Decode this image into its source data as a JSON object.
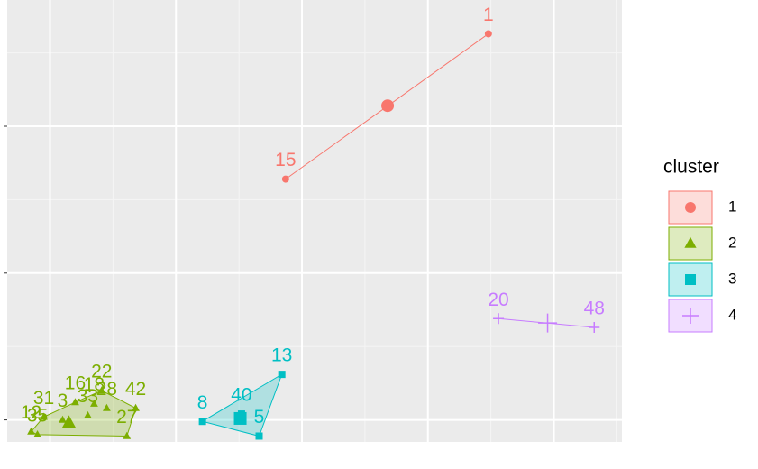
{
  "chart_data": {
    "type": "scatter",
    "xlim": [
      -0.34,
      4.54
    ],
    "ylim": [
      -0.15,
      2.86
    ],
    "xticks": [
      0,
      1,
      2,
      3,
      4
    ],
    "yticks": [
      0,
      1,
      2
    ],
    "grid": true,
    "legend": {
      "title": "cluster",
      "position": "right"
    },
    "series": [
      {
        "name": "1",
        "color": "#F8766D",
        "shape": "circle",
        "labels": [
          "1",
          "15"
        ],
        "x": [
          3.48,
          1.87
        ],
        "y": [
          2.63,
          1.64
        ],
        "center": {
          "x": 2.68,
          "y": 2.14
        }
      },
      {
        "name": "2",
        "color": "#7CAE00",
        "shape": "triangle",
        "labels": [
          "22",
          "42",
          "27",
          "16",
          "18",
          "28",
          "33",
          "31",
          "3",
          "12",
          "35"
        ],
        "x": [
          0.41,
          0.68,
          0.61,
          0.2,
          0.35,
          0.45,
          0.3,
          -0.05,
          0.1,
          -0.15,
          -0.1
        ],
        "y": [
          0.2,
          0.08,
          -0.11,
          0.12,
          0.11,
          0.08,
          0.03,
          0.02,
          0.0,
          -0.08,
          -0.1
        ],
        "center": {
          "x": 0.15,
          "y": -0.02
        }
      },
      {
        "name": "3",
        "color": "#00BFC4",
        "shape": "square",
        "labels": [
          "13",
          "8",
          "40",
          "5"
        ],
        "x": [
          1.84,
          1.21,
          1.52,
          1.66
        ],
        "y": [
          0.31,
          -0.01,
          0.04,
          -0.11
        ],
        "center": {
          "x": 1.51,
          "y": 0.01
        }
      },
      {
        "name": "4",
        "color": "#C77CFF",
        "shape": "cross",
        "labels": [
          "20",
          "48"
        ],
        "x": [
          3.56,
          4.32
        ],
        "y": [
          0.69,
          0.63
        ],
        "center": {
          "x": 3.95,
          "y": 0.66
        }
      }
    ]
  }
}
